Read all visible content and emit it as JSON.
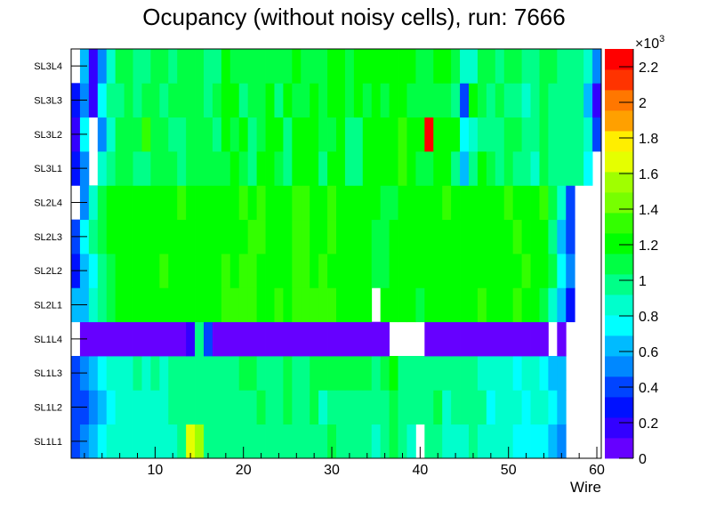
{
  "chart_data": {
    "type": "heatmap",
    "title": "Ocupancy (without noisy cells), run: 7666",
    "xlabel": "Wire",
    "ylabel": "",
    "x_range": [
      0.5,
      60.5
    ],
    "x_ticks": [
      "10",
      "20",
      "30",
      "40",
      "50",
      "60"
    ],
    "x_tick_values": [
      10,
      20,
      30,
      40,
      50,
      60
    ],
    "y_labels": [
      "SL1L1",
      "SL1L2",
      "SL1L3",
      "SL1L4",
      "SL2L1",
      "SL2L2",
      "SL2L3",
      "SL2L4",
      "SL3L1",
      "SL3L2",
      "SL3L3",
      "SL3L4"
    ],
    "z_range": [
      0,
      2300
    ],
    "z_bins": 20,
    "colorbar_exponent": "×10",
    "colorbar_exponent_power": "3",
    "colorbar_ticks": [
      "0",
      "0.2",
      "0.4",
      "0.6",
      "0.8",
      "1",
      "1.2",
      "1.4",
      "1.6",
      "1.8",
      "2",
      "2.2"
    ],
    "colorbar_tick_values": [
      0,
      200,
      400,
      600,
      800,
      1000,
      1200,
      1400,
      1600,
      1800,
      2000,
      2200
    ],
    "palette": [
      "#6600ff",
      "#3300ff",
      "#0011ff",
      "#0044ff",
      "#0088ff",
      "#00bbff",
      "#00ffff",
      "#00ffcc",
      "#00ff88",
      "#00ff44",
      "#00ff00",
      "#33ff00",
      "#77ff00",
      "#a0ff00",
      "#e5ff00",
      "#ffee00",
      "#ffa000",
      "#ff7700",
      "#ff3300",
      "#ff0000"
    ],
    "z": [
      [
        403,
        518,
        633,
        748,
        863,
        863,
        863,
        863,
        863,
        863,
        863,
        863,
        978,
        1668,
        1553,
        978,
        978,
        978,
        978,
        978,
        978,
        978,
        978,
        978,
        978,
        978,
        978,
        978,
        978,
        1093,
        978,
        978,
        978,
        978,
        863,
        978,
        1093,
        978,
        863,
        null,
        978,
        978,
        863,
        863,
        863,
        978,
        863,
        863,
        863,
        863,
        748,
        748,
        748,
        748,
        633,
        518,
        null,
        null,
        null,
        null
      ],
      [
        403,
        403,
        518,
        633,
        748,
        863,
        863,
        863,
        863,
        863,
        863,
        978,
        978,
        978,
        978,
        978,
        978,
        978,
        978,
        978,
        978,
        1093,
        978,
        978,
        1093,
        978,
        978,
        1093,
        863,
        978,
        978,
        978,
        978,
        978,
        978,
        978,
        1093,
        978,
        978,
        978,
        978,
        1093,
        863,
        978,
        978,
        978,
        978,
        748,
        863,
        863,
        863,
        748,
        863,
        863,
        748,
        633,
        null,
        null,
        null,
        null
      ],
      [
        403,
        518,
        633,
        748,
        863,
        863,
        863,
        978,
        863,
        978,
        863,
        978,
        978,
        978,
        978,
        978,
        978,
        978,
        978,
        1093,
        1093,
        978,
        978,
        978,
        1093,
        978,
        978,
        1093,
        1093,
        1093,
        1093,
        1093,
        1093,
        1093,
        978,
        1093,
        1208,
        978,
        978,
        978,
        978,
        978,
        978,
        978,
        978,
        978,
        863,
        863,
        863,
        863,
        748,
        863,
        863,
        748,
        633,
        633,
        null,
        null,
        null,
        null
      ],
      [
        null,
        58,
        58,
        58,
        58,
        58,
        58,
        58,
        58,
        58,
        58,
        58,
        58,
        173,
        978,
        403,
        58,
        58,
        58,
        58,
        58,
        58,
        58,
        58,
        58,
        58,
        58,
        58,
        58,
        58,
        58,
        58,
        58,
        58,
        58,
        58,
        null,
        null,
        null,
        null,
        58,
        58,
        58,
        58,
        58,
        58,
        58,
        58,
        58,
        58,
        58,
        58,
        58,
        58,
        null,
        58,
        null,
        null,
        null,
        null
      ],
      [
        633,
        633,
        863,
        978,
        1093,
        1208,
        1208,
        1208,
        1208,
        1208,
        1208,
        1208,
        1208,
        1208,
        1208,
        1208,
        1208,
        1323,
        1323,
        1323,
        1323,
        1208,
        1208,
        1323,
        1208,
        1323,
        1323,
        1323,
        1323,
        1323,
        1208,
        1208,
        1208,
        1208,
        null,
        1208,
        1208,
        1208,
        1208,
        1093,
        1208,
        1208,
        1208,
        1208,
        1208,
        1208,
        1323,
        1208,
        1208,
        1208,
        1323,
        1208,
        1208,
        1093,
        863,
        633,
        288,
        null,
        null,
        null
      ],
      [
        288,
        633,
        748,
        978,
        1093,
        1208,
        1208,
        1208,
        1208,
        1208,
        1323,
        1208,
        1208,
        1208,
        1208,
        1208,
        1208,
        1323,
        1208,
        1323,
        1323,
        1208,
        1208,
        1208,
        1208,
        1323,
        1323,
        1208,
        1323,
        1208,
        1208,
        1208,
        1208,
        1208,
        1093,
        1093,
        1208,
        1208,
        1208,
        1208,
        1208,
        1208,
        1208,
        1208,
        1208,
        1208,
        1208,
        1208,
        1208,
        1208,
        1208,
        1323,
        1208,
        1208,
        1093,
        748,
        518,
        null,
        null,
        null
      ],
      [
        403,
        748,
        978,
        1093,
        1208,
        1208,
        1208,
        1208,
        1208,
        1208,
        1208,
        1208,
        1208,
        1208,
        1208,
        1208,
        1208,
        1208,
        1208,
        1208,
        1323,
        1323,
        1208,
        1208,
        1208,
        1323,
        1323,
        1208,
        1208,
        1323,
        1208,
        1208,
        1208,
        1208,
        1093,
        1093,
        1208,
        1208,
        1208,
        1208,
        1208,
        1208,
        1208,
        1208,
        1208,
        1208,
        1208,
        1208,
        1208,
        1208,
        1323,
        1208,
        1208,
        1208,
        978,
        633,
        403,
        null,
        null,
        null
      ],
      [
        null,
        518,
        863,
        1093,
        1208,
        1208,
        1208,
        1208,
        1208,
        1208,
        1208,
        1208,
        1323,
        1208,
        1208,
        1208,
        1208,
        1208,
        1208,
        1323,
        1208,
        1323,
        1208,
        1208,
        1208,
        1323,
        1323,
        1208,
        1208,
        1323,
        1208,
        1208,
        1208,
        1208,
        1208,
        1093,
        1093,
        1208,
        1208,
        1208,
        1208,
        1208,
        1323,
        1208,
        1208,
        1208,
        1208,
        1208,
        1208,
        1323,
        1208,
        1208,
        1208,
        1323,
        1093,
        863,
        403,
        null,
        null,
        null
      ],
      [
        288,
        518,
        null,
        863,
        978,
        1093,
        1093,
        978,
        978,
        1093,
        1093,
        1093,
        978,
        1093,
        1093,
        1093,
        1093,
        1093,
        1208,
        1093,
        978,
        1208,
        1208,
        1093,
        978,
        1208,
        1208,
        1208,
        978,
        1208,
        1208,
        978,
        978,
        1208,
        1208,
        1208,
        1208,
        1323,
        1208,
        1093,
        1093,
        1208,
        1208,
        978,
        633,
        978,
        1208,
        1093,
        978,
        1093,
        978,
        978,
        863,
        1093,
        978,
        978,
        978,
        978,
        748,
        null
      ],
      [
        173,
        748,
        null,
        518,
        863,
        1093,
        1093,
        1093,
        1323,
        1093,
        1093,
        978,
        978,
        1093,
        1093,
        1093,
        978,
        1208,
        1093,
        1208,
        978,
        1093,
        1208,
        1208,
        978,
        1208,
        1208,
        1208,
        1093,
        1093,
        1208,
        978,
        978,
        1208,
        1208,
        1208,
        1208,
        1323,
        1208,
        1208,
        2243,
        1208,
        1208,
        1208,
        748,
        863,
        978,
        978,
        978,
        1093,
        1093,
        978,
        978,
        1093,
        978,
        978,
        978,
        978,
        863,
        403
      ],
      [
        288,
        518,
        173,
        748,
        978,
        978,
        1093,
        978,
        1093,
        1093,
        978,
        1093,
        1093,
        1093,
        1093,
        978,
        1093,
        1208,
        1208,
        978,
        1093,
        1093,
        1208,
        978,
        1208,
        1093,
        1093,
        1208,
        1093,
        1208,
        1208,
        1093,
        1208,
        1093,
        1208,
        1093,
        1208,
        1208,
        1093,
        1093,
        1093,
        1093,
        1093,
        978,
        403,
        1208,
        1093,
        978,
        1093,
        978,
        978,
        863,
        978,
        1093,
        978,
        978,
        978,
        978,
        633,
        173
      ],
      [
        null,
        633,
        173,
        518,
        863,
        1093,
        1093,
        978,
        978,
        1093,
        1093,
        978,
        1093,
        1093,
        1093,
        978,
        978,
        1208,
        1093,
        1093,
        1093,
        1093,
        1093,
        1093,
        1093,
        1208,
        1093,
        1093,
        1093,
        1208,
        1208,
        1093,
        1208,
        1208,
        1208,
        1208,
        1208,
        1208,
        1208,
        1093,
        1093,
        1208,
        1208,
        1093,
        863,
        863,
        1093,
        1093,
        978,
        1093,
        1093,
        978,
        978,
        1093,
        1093,
        978,
        978,
        978,
        863,
        518
      ]
    ]
  }
}
